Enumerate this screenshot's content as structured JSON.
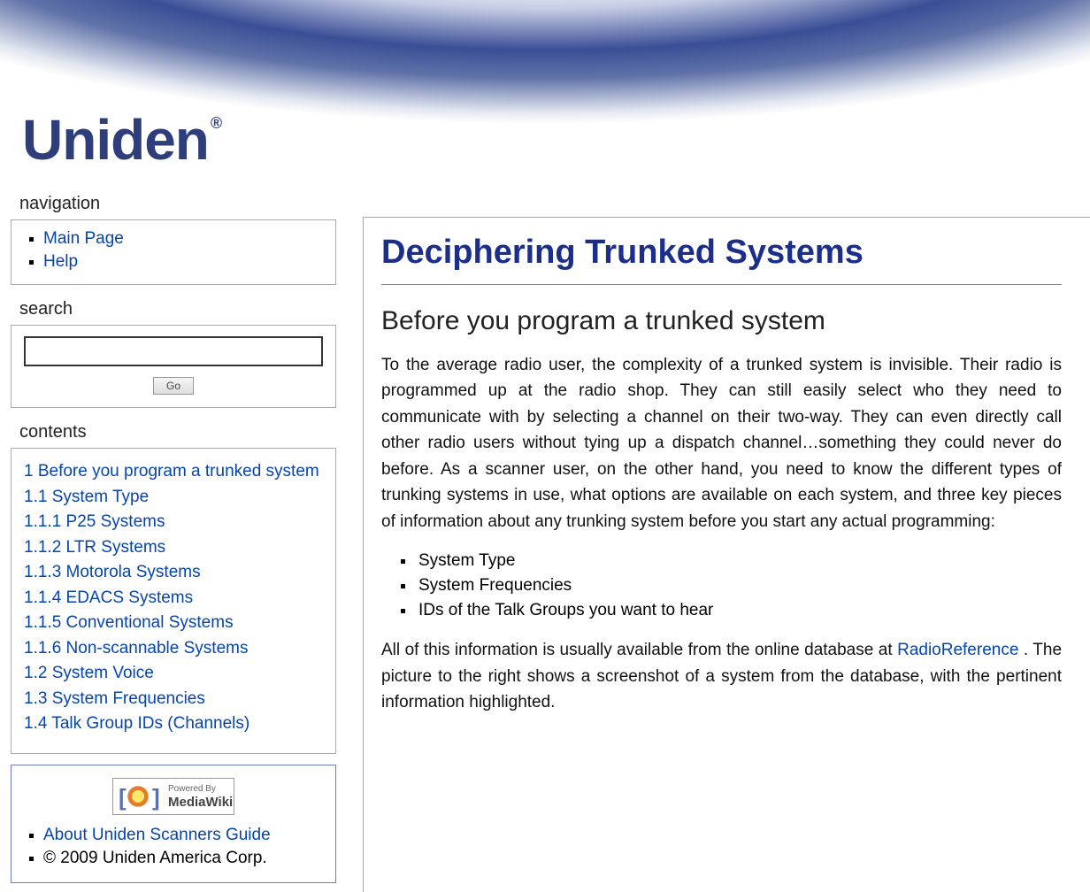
{
  "header": {
    "logo_text": "Uniden",
    "logo_reg": "®"
  },
  "sidebar": {
    "navigation": {
      "title": "navigation",
      "items": [
        {
          "label": "Main Page"
        },
        {
          "label": "Help"
        }
      ]
    },
    "search": {
      "title": "search",
      "value": "",
      "go_label": "Go"
    },
    "contents": {
      "title": "contents",
      "items": [
        "1 Before you program a trunked system",
        "1.1 System Type",
        "1.1.1 P25 Systems",
        "1.1.2 LTR Systems",
        "1.1.3 Motorola Systems",
        "1.1.4 EDACS Systems",
        "1.1.5 Conventional Systems",
        "1.1.6 Non-scannable Systems",
        "1.2 System Voice",
        "1.3 System Frequencies",
        "1.4 Talk Group IDs (Channels)"
      ]
    },
    "footer": {
      "powered_by_small": "Powered By",
      "powered_by_big": "MediaWiki",
      "about_link": "About Uniden Scanners Guide",
      "copyright": "© 2009 Uniden America Corp."
    }
  },
  "content": {
    "title": "Deciphering Trunked Systems",
    "heading": "Before you program a trunked system",
    "para1": "To the average radio user, the complexity of a trunked system is invisible. Their radio is programmed up at the radio shop. They can still easily select who they need to communicate with by selecting a channel on their two-way. They can even directly call other radio users without tying up a dispatch channel…something they could never do before. As a scanner user, on the other hand, you need to know the different types of trunking systems in use, what options are available on each system, and three key pieces of information about any trunking system before you start any actual programming:",
    "bullets": [
      "System Type",
      "System Frequencies",
      "IDs of the Talk Groups you want to hear"
    ],
    "para2_a": "All of this information is usually available from the online database at ",
    "para2_link": "RadioReference",
    "para2_b": " . The picture to the right shows a screenshot of a system from the database, with the pertinent information highlighted."
  },
  "colors": {
    "link": "#0645ad",
    "title": "#1a2e8a",
    "border": "#aaaaaa",
    "footer_border": "#6a7bbf"
  }
}
